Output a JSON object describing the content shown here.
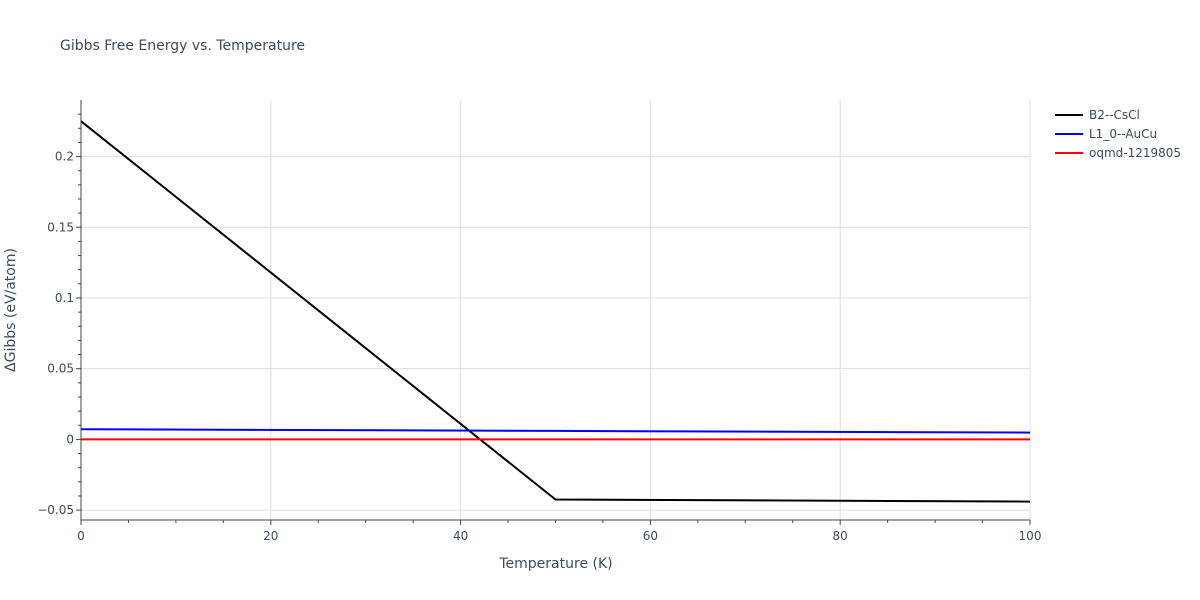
{
  "chart_data": {
    "type": "line",
    "title": "Gibbs Free Energy vs. Temperature",
    "xlabel": "Temperature (K)",
    "ylabel": "ΔGibbs (eV/atom)",
    "xlim": [
      0,
      100
    ],
    "ylim": [
      -0.057,
      0.24
    ],
    "xticks": [
      0,
      20,
      40,
      60,
      80,
      100
    ],
    "xtick_labels": [
      "0",
      "20",
      "40",
      "60",
      "80",
      "100"
    ],
    "yticks": [
      -0.05,
      0,
      0.05,
      0.1,
      0.15,
      0.2
    ],
    "ytick_labels": [
      "−0.05",
      "0",
      "0.05",
      "0.1",
      "0.15",
      "0.2"
    ],
    "grid": true,
    "legend_position": "top-right, outside",
    "series": [
      {
        "name": "B2--CsCl",
        "color": "#000000",
        "x": [
          0,
          50,
          100
        ],
        "y": [
          0.225,
          -0.0425,
          -0.044
        ]
      },
      {
        "name": "L1_0--AuCu",
        "color": "#0000ff",
        "x": [
          0,
          50,
          100
        ],
        "y": [
          0.0072,
          0.006,
          0.0048
        ]
      },
      {
        "name": "oqmd-1219805",
        "color": "#ff0000",
        "x": [
          0,
          100
        ],
        "y": [
          0,
          0
        ]
      }
    ]
  }
}
